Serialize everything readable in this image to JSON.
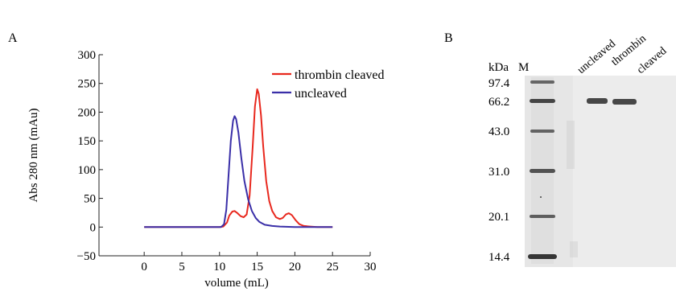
{
  "panel_a": {
    "label": "A",
    "chart_data": {
      "type": "line",
      "title": "",
      "xlabel": "volume (mL)",
      "ylabel": "Abs 280 nm (mAu)",
      "xlim": [
        -6,
        30
      ],
      "ylim": [
        -50,
        300
      ],
      "xticks": [
        0,
        5,
        10,
        15,
        20,
        25,
        30
      ],
      "yticks": [
        -50,
        0,
        50,
        100,
        150,
        200,
        250,
        300
      ],
      "legend_position": "top-right",
      "grid": false,
      "series": [
        {
          "name": "thrombin cleaved",
          "color": "#e8281e",
          "x": [
            0,
            10,
            10.5,
            11,
            11.3,
            11.7,
            12,
            12.4,
            12.8,
            13.2,
            13.6,
            14,
            14.4,
            14.7,
            15,
            15.2,
            15.5,
            15.8,
            16.2,
            16.6,
            17,
            17.5,
            18,
            18.4,
            18.8,
            19.2,
            19.6,
            20.1,
            20.6,
            21.2,
            22,
            23,
            25
          ],
          "y": [
            0,
            0,
            1,
            8,
            20,
            27,
            28,
            24,
            19,
            17,
            22,
            55,
            140,
            210,
            240,
            232,
            195,
            140,
            80,
            45,
            28,
            17,
            14,
            16,
            22,
            24,
            21,
            12,
            5,
            2,
            1,
            0,
            0
          ]
        },
        {
          "name": "uncleaved",
          "color": "#3a2fa8",
          "x": [
            0,
            10.2,
            10.6,
            10.9,
            11.2,
            11.5,
            11.8,
            12,
            12.2,
            12.5,
            12.9,
            13.3,
            13.8,
            14.3,
            14.8,
            15.3,
            16,
            17,
            18,
            20,
            25
          ],
          "y": [
            0,
            0,
            5,
            30,
            90,
            150,
            185,
            193,
            188,
            165,
            120,
            80,
            48,
            28,
            16,
            9,
            4,
            2,
            1,
            0,
            0
          ]
        }
      ]
    }
  },
  "panel_b": {
    "label": "B",
    "unit_label": "kDa",
    "marker_lane_label": "M",
    "lane_labels": [
      "uncleaved",
      "thrombin",
      "cleaved"
    ],
    "marker_bands": [
      {
        "label": "97.4",
        "kda": 97.4
      },
      {
        "label": "66.2",
        "kda": 66.2
      },
      {
        "label": "43.0",
        "kda": 43.0
      },
      {
        "label": "31.0",
        "kda": 31.0
      },
      {
        "label": "20.1",
        "kda": 20.1
      },
      {
        "label": "14.4",
        "kda": 14.4
      }
    ]
  }
}
